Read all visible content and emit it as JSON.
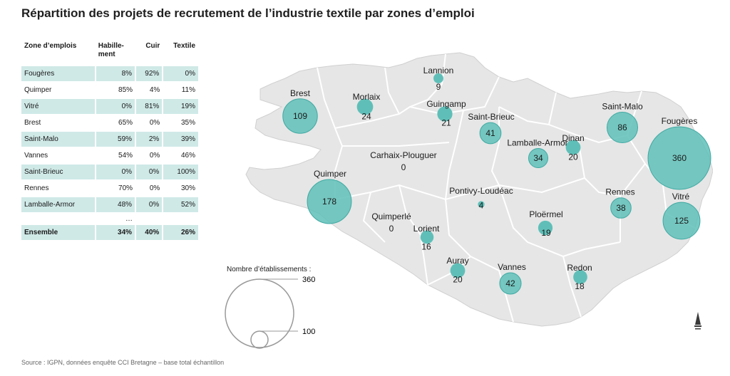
{
  "title": "Répartition des projets de recrutement de l’industrie textile par zones d’emploi",
  "table": {
    "headers": [
      "Zone d’emplois",
      "Habille-\nment",
      "Cuir",
      "Textile"
    ],
    "rows": [
      [
        "Fougères",
        "8%",
        "92%",
        "0%"
      ],
      [
        "Quimper",
        "85%",
        "4%",
        "11%"
      ],
      [
        "Vitré",
        "0%",
        "81%",
        "19%"
      ],
      [
        "Brest",
        "65%",
        "0%",
        "35%"
      ],
      [
        "Saint-Malo",
        "59%",
        "2%",
        "39%"
      ],
      [
        "Vannes",
        "54%",
        "0%",
        "46%"
      ],
      [
        "Saint-Brieuc",
        "0%",
        "0%",
        "100%"
      ],
      [
        "Rennes",
        "70%",
        "0%",
        "30%"
      ],
      [
        "Lamballe-Armor",
        "48%",
        "0%",
        "52%"
      ]
    ],
    "ellipsis": "…",
    "total": [
      "Ensemble",
      "34%",
      "40%",
      "26%"
    ]
  },
  "map": {
    "colors": {
      "land": "#e6e6e6",
      "border": "#ffffff",
      "bubble": "#5fbfb8",
      "bubble_stroke": "#3fa9a2"
    },
    "zones": [
      {
        "name": "Lannion",
        "value": 9
      },
      {
        "name": "Morlaix",
        "value": 24
      },
      {
        "name": "Guingamp",
        "value": 21
      },
      {
        "name": "Brest",
        "value": 109
      },
      {
        "name": "Saint-Brieuc",
        "value": 41
      },
      {
        "name": "Saint-Malo",
        "value": 86
      },
      {
        "name": "Fougères",
        "value": 360
      },
      {
        "name": "Dinan",
        "value": 20
      },
      {
        "name": "Lamballe-Armor",
        "value": 34
      },
      {
        "name": "Carhaix-Plouguer",
        "value": 0
      },
      {
        "name": "Quimper",
        "value": 178
      },
      {
        "name": "Pontivy-Loudéac",
        "value": 4
      },
      {
        "name": "Rennes",
        "value": 38
      },
      {
        "name": "Vitré",
        "value": 125
      },
      {
        "name": "Quimperlé",
        "value": 0
      },
      {
        "name": "Lorient",
        "value": 16
      },
      {
        "name": "Ploërmel",
        "value": 19
      },
      {
        "name": "Auray",
        "value": 20
      },
      {
        "name": "Vannes",
        "value": 42
      },
      {
        "name": "Redon",
        "value": 18
      }
    ]
  },
  "legend": {
    "title": "Nombre d’établissements :",
    "big_value": "360",
    "small_value": "100"
  },
  "source": "Source : IGPN, données enquête CCI Bretagne – base total échantillon"
}
